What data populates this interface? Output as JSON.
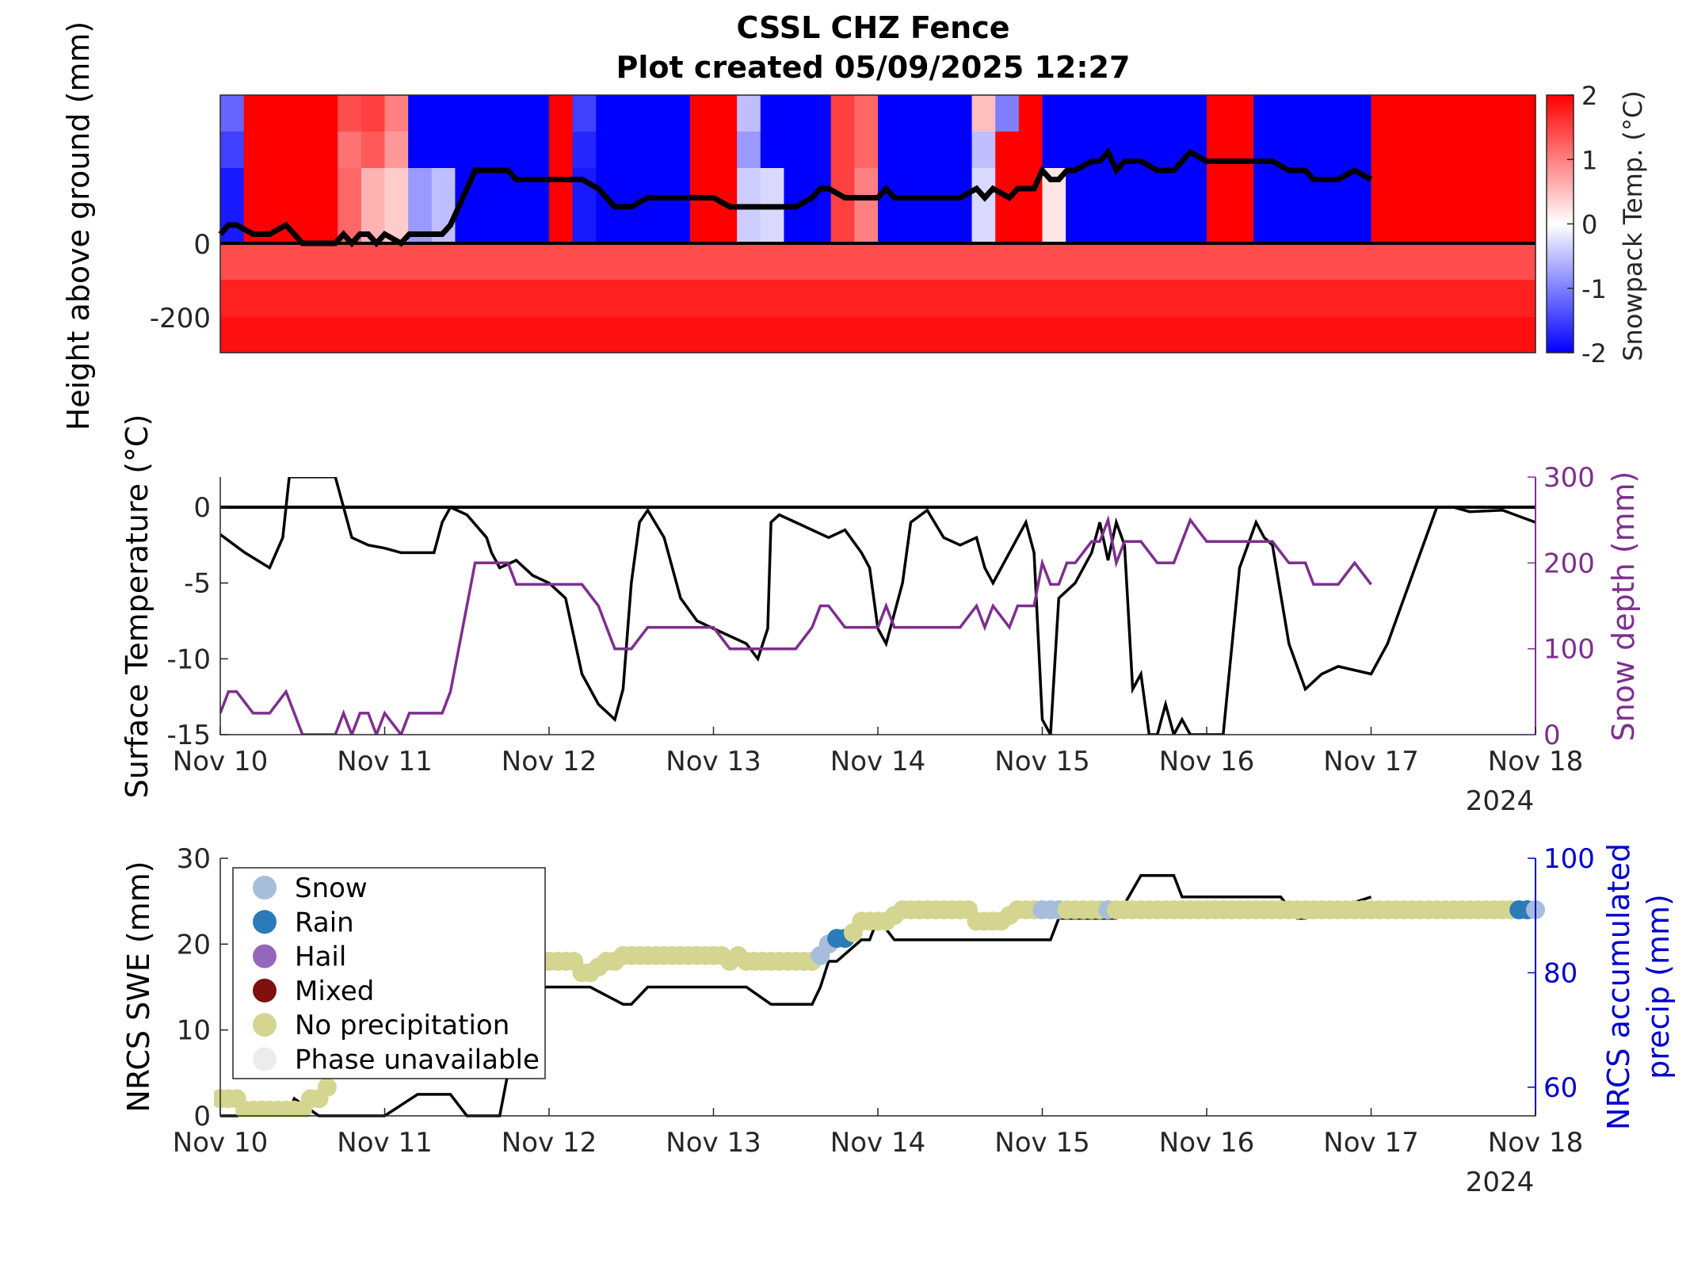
{
  "title": "CSSL CHZ Fence",
  "subtitle": "Plot created 05/09/2025 12:27",
  "colors": {
    "warm": "#ff0000",
    "cold": "#0000ff",
    "snow_depth_line": "#7e2f8e",
    "precip_axis": "#0000cc",
    "snow": "#a6bddb",
    "rain": "#2b7bb9",
    "hail": "#9467bd",
    "mixed": "#7f1010",
    "no_precip": "#d4d591",
    "phase_unavailable": "#ececec"
  },
  "chart_data": [
    {
      "type": "heatmap",
      "ylabel": "Height above ground (mm)",
      "yticks": [
        0,
        -200
      ],
      "ylim": [
        -300,
        400
      ],
      "colorbar": {
        "label": "Snowpack Temp. (°C)",
        "ticks": [
          2,
          1,
          0,
          -1,
          -2
        ],
        "range": [
          -2,
          2
        ]
      },
      "levels_above_ground_mm": [
        300,
        200,
        100
      ],
      "snowpack_temp_C": [
        [
          -1.2,
          2,
          2,
          2,
          2,
          1.4,
          1.5,
          1,
          -2,
          -2,
          -2,
          -2,
          -2,
          -2,
          2,
          -1.5,
          -2,
          -2,
          -2,
          -2,
          2,
          2,
          -0.5,
          -2,
          -2,
          -2,
          1.5,
          1.2,
          -2,
          -2,
          -2,
          -2,
          0.5,
          -1,
          2,
          -2,
          -2,
          -2,
          -2,
          -2,
          -2,
          -2,
          2,
          2,
          -2,
          -2,
          -2,
          -2,
          -2,
          2,
          2,
          2,
          2,
          2,
          2,
          2
        ],
        [
          -1.5,
          2,
          2,
          2,
          2,
          1.1,
          1.3,
          0.8,
          -2,
          -2,
          -2,
          -2,
          -2,
          -2,
          2,
          -1.7,
          -2,
          -2,
          -2,
          -2,
          2,
          2,
          -0.8,
          -2,
          -2,
          -2,
          1.5,
          1.2,
          -2,
          -2,
          -2,
          -2,
          -0.5,
          2,
          2,
          -2,
          -2,
          -2,
          -2,
          -2,
          -2,
          -2,
          2,
          2,
          -2,
          -2,
          -2,
          -2,
          -2,
          2,
          2,
          2,
          2,
          2,
          2,
          2
        ],
        [
          -1.8,
          2,
          2,
          2,
          2,
          1.2,
          0.6,
          0.4,
          -0.8,
          -0.5,
          -2,
          -2,
          -2,
          -2,
          2,
          -1.8,
          -2,
          -2,
          -2,
          -2,
          2,
          2,
          -0.4,
          -0.3,
          -2,
          -2,
          1.5,
          1,
          -2,
          -2,
          -2,
          -2,
          -0.3,
          2,
          2,
          0.2,
          -2,
          -2,
          -2,
          -2,
          -2,
          -2,
          2,
          2,
          -2,
          -2,
          -2,
          -2,
          -2,
          2,
          2,
          2,
          2,
          2,
          2,
          2
        ]
      ],
      "snow_depth_overlay_color": "#000000"
    },
    {
      "type": "line",
      "ylabel": "Surface Temperature (°C)",
      "y2label": "Snow depth (mm)",
      "ylim": [
        -15,
        2
      ],
      "yticks": [
        0,
        -5,
        -10,
        -15
      ],
      "y2lim": [
        0,
        300
      ],
      "y2ticks": [
        0,
        100,
        200,
        300
      ],
      "xticks": [
        "Nov 10",
        "Nov 11",
        "Nov 12",
        "Nov 13",
        "Nov 14",
        "Nov 15",
        "Nov 16",
        "Nov 17",
        "Nov 18"
      ],
      "xlim_days": [
        10,
        18
      ],
      "year_label": "2024",
      "series": [
        {
          "kind": "surface_temp",
          "x": [
            10,
            10.15,
            10.3,
            10.38,
            10.42,
            10.45,
            10.6,
            10.7,
            10.8,
            10.9,
            11.0,
            11.1,
            11.3,
            11.35,
            11.4,
            11.5,
            11.62,
            11.65,
            11.7,
            11.8,
            11.9,
            12.0,
            12.1,
            12.2,
            12.3,
            12.4,
            12.45,
            12.5,
            12.55,
            12.6,
            12.7,
            12.8,
            12.9,
            13.0,
            13.1,
            13.2,
            13.27,
            13.33,
            13.35,
            13.4,
            13.5,
            13.7,
            13.8,
            13.9,
            13.95,
            14.0,
            14.05,
            14.1,
            14.15,
            14.2,
            14.3,
            14.4,
            14.5,
            14.6,
            14.65,
            14.7,
            14.8,
            14.9,
            14.95,
            15.0,
            15.05,
            15.1,
            15.2,
            15.3,
            15.35,
            15.4,
            15.45,
            15.5,
            15.55,
            15.6,
            15.65,
            15.7,
            15.75,
            15.8,
            15.85,
            15.9,
            16.0,
            16.1,
            16.2,
            16.3,
            16.35,
            16.4,
            16.5,
            16.6,
            16.7,
            16.8,
            17.0,
            17.1,
            17.2,
            17.3,
            17.4,
            17.5,
            17.6,
            17.8,
            18.0
          ],
          "y": [
            -1.8,
            -3,
            -4,
            -2,
            2,
            2,
            2,
            2,
            -2,
            -2.5,
            -2.7,
            -3,
            -3,
            -1,
            0,
            -0.5,
            -2,
            -3,
            -4,
            -3.5,
            -4.5,
            -5,
            -6,
            -11,
            -13,
            -14,
            -12,
            -5,
            -1,
            -0.2,
            -2,
            -6,
            -7.5,
            -8,
            -8.5,
            -9,
            -10,
            -8,
            -1,
            -0.5,
            -1,
            -2,
            -1.5,
            -3,
            -4,
            -8,
            -9,
            -7,
            -5,
            -1,
            -0.2,
            -2,
            -2.5,
            -2,
            -4,
            -5,
            -3,
            -1,
            -3,
            -14,
            -15,
            -6,
            -5,
            -3,
            -1,
            -3.5,
            -1,
            -2.5,
            -12,
            -11,
            -15,
            -15,
            -13,
            -15,
            -14,
            -15,
            -15,
            -15,
            -4,
            -1,
            -2,
            -2.5,
            -9,
            -12,
            -11,
            -10.5,
            -11,
            -9,
            -6,
            -3,
            0,
            0,
            -0.3,
            -0.2,
            -1
          ]
        },
        {
          "kind": "snow_depth_mm",
          "x": [
            10,
            10.05,
            10.1,
            10.2,
            10.25,
            10.3,
            10.4,
            10.45,
            10.5,
            10.6,
            10.7,
            10.75,
            10.8,
            10.85,
            10.9,
            10.95,
            11.0,
            11.1,
            11.15,
            11.2,
            11.25,
            11.3,
            11.35,
            11.4,
            11.5,
            11.55,
            11.6,
            11.65,
            11.7,
            11.75,
            11.8,
            11.9,
            11.95,
            12.0,
            12.1,
            12.2,
            12.3,
            12.35,
            12.4,
            12.5,
            12.6,
            12.7,
            12.8,
            12.9,
            13.0,
            13.1,
            13.15,
            13.2,
            13.3,
            13.4,
            13.5,
            13.6,
            13.65,
            13.7,
            13.8,
            13.9,
            14.0,
            14.05,
            14.1,
            14.15,
            14.2,
            14.3,
            14.4,
            14.5,
            14.6,
            14.65,
            14.7,
            14.8,
            14.85,
            14.9,
            14.95,
            15.0,
            15.05,
            15.1,
            15.15,
            15.2,
            15.3,
            15.35,
            15.4,
            15.45,
            15.5,
            15.55,
            15.6,
            15.7,
            15.75,
            15.8,
            15.9,
            16.0,
            16.05,
            16.1,
            16.2,
            16.3,
            16.4,
            16.5,
            16.6,
            16.65,
            16.7,
            16.8,
            16.9,
            17.0
          ],
          "y": [
            25,
            50,
            50,
            25,
            25,
            25,
            50,
            25,
            0,
            0,
            0,
            25,
            0,
            25,
            25,
            0,
            25,
            0,
            25,
            25,
            25,
            25,
            25,
            50,
            150,
            200,
            200,
            200,
            200,
            200,
            175,
            175,
            175,
            175,
            175,
            175,
            150,
            125,
            100,
            100,
            125,
            125,
            125,
            125,
            125,
            100,
            100,
            100,
            100,
            100,
            100,
            125,
            150,
            150,
            125,
            125,
            125,
            150,
            125,
            125,
            125,
            125,
            125,
            125,
            150,
            125,
            150,
            125,
            150,
            150,
            150,
            200,
            175,
            175,
            200,
            200,
            225,
            225,
            250,
            200,
            225,
            225,
            225,
            200,
            200,
            200,
            250,
            225,
            225,
            225,
            225,
            225,
            225,
            200,
            200,
            175,
            175,
            175,
            200,
            175
          ]
        }
      ]
    },
    {
      "type": "scatter",
      "ylabel": "NRCS SWE (mm)",
      "y2label": "NRCS accumulated precip (mm)",
      "ylim": [
        0,
        30
      ],
      "yticks": [
        0,
        10,
        20,
        30
      ],
      "y2lim": [
        55,
        100
      ],
      "y2ticks": [
        60,
        80,
        100
      ],
      "xticks": [
        "Nov 10",
        "Nov 11",
        "Nov 12",
        "Nov 13",
        "Nov 14",
        "Nov 15",
        "Nov 16",
        "Nov 17",
        "Nov 18"
      ],
      "year_label": "2024",
      "legend": {
        "placement": "top-left",
        "entries": [
          "Snow",
          "Rain",
          "Hail",
          "Mixed",
          "No precipitation",
          "Phase unavailable"
        ]
      },
      "series": [
        {
          "kind": "swe_mm",
          "x": [
            10,
            10.35,
            10.37,
            10.4,
            10.43,
            10.45,
            10.6,
            10.62,
            10.65,
            10.7,
            10.9,
            11.0,
            11.2,
            11.25,
            11.4,
            11.5,
            11.6,
            11.7,
            11.85,
            12.1,
            12.2,
            12.25,
            12.45,
            12.5,
            12.6,
            12.8,
            13.0,
            13.05,
            13.2,
            13.35,
            13.6,
            13.65,
            13.7,
            13.75,
            13.9,
            13.95,
            14.0,
            14.1,
            14.5,
            15.0,
            15.05,
            15.1,
            15.15,
            15.3,
            15.4,
            15.45,
            15.6,
            15.8,
            15.85,
            16.0,
            16.4,
            16.45,
            16.55,
            16.6,
            17.0
          ],
          "y": [
            0,
            0,
            1,
            1,
            1,
            2,
            0,
            0,
            0,
            0,
            0,
            0,
            2.5,
            2.5,
            2.5,
            0,
            0,
            0,
            15,
            15,
            15,
            15,
            13,
            13,
            15,
            15,
            15,
            15,
            15,
            13,
            13,
            15,
            18,
            18,
            20.5,
            20.5,
            23,
            20.5,
            20.5,
            20.5,
            20.5,
            23,
            23,
            23,
            23,
            23,
            28,
            28,
            25.5,
            25.5,
            25.5,
            25.5,
            23,
            23,
            25.5
          ]
        },
        {
          "kind": "accumulated_precip_mm",
          "phases": [
            "no_precip",
            "snow",
            "rain",
            "no_precip",
            "snow",
            "rain"
          ],
          "x": [
            10.0,
            10.05,
            10.1,
            10.15,
            10.2,
            10.25,
            10.3,
            10.35,
            10.4,
            10.45,
            10.5,
            10.55,
            10.6,
            10.65,
            11.85,
            11.9,
            11.95,
            12.0,
            12.05,
            12.1,
            12.15,
            12.2,
            12.25,
            12.3,
            12.35,
            12.4,
            12.45,
            12.5,
            12.55,
            12.6,
            12.65,
            12.7,
            12.75,
            12.8,
            12.85,
            12.9,
            12.95,
            13.0,
            13.05,
            13.1,
            13.15,
            13.2,
            13.25,
            13.3,
            13.35,
            13.4,
            13.45,
            13.5,
            13.55,
            13.6,
            13.65,
            13.7,
            13.75,
            13.8,
            13.85,
            13.9,
            13.95,
            14.0,
            14.05,
            14.1,
            14.15,
            14.2,
            14.25,
            14.3,
            14.35,
            14.4,
            14.45,
            14.5,
            14.55,
            14.6,
            14.65,
            14.7,
            14.75,
            14.8,
            14.85,
            14.9,
            14.95,
            15.0,
            15.05,
            15.1,
            15.15,
            15.2,
            15.25,
            15.3,
            15.35,
            15.4,
            15.45,
            15.5,
            15.55,
            15.6,
            15.65,
            15.7,
            15.75,
            15.8,
            15.85,
            15.9,
            15.95,
            16.0,
            16.05,
            16.1,
            16.15,
            16.2,
            16.25,
            16.3,
            16.35,
            16.4,
            16.45,
            16.5,
            16.55,
            16.6,
            16.65,
            16.7,
            16.75,
            16.8,
            16.85,
            16.9,
            16.95,
            17.0,
            17.05,
            17.1,
            17.15,
            17.2,
            17.25,
            17.3,
            17.35,
            17.4,
            17.45,
            17.5,
            17.55,
            17.6,
            17.65,
            17.7,
            17.75,
            17.8,
            17.85,
            17.9,
            17.95,
            18.0
          ],
          "y": [
            58,
            58,
            58,
            56,
            56,
            56,
            56,
            56,
            56,
            56,
            56,
            58,
            58,
            60,
            82,
            82,
            82,
            82,
            82,
            82,
            82,
            80,
            80,
            81,
            82,
            82,
            83,
            83,
            83,
            83,
            83,
            83,
            83,
            83,
            83,
            83,
            83,
            83,
            83,
            82,
            83,
            82,
            82,
            82,
            82,
            82,
            82,
            82,
            82,
            82,
            83,
            85,
            86,
            86,
            87,
            89,
            89,
            89,
            89,
            90,
            91,
            91,
            91,
            91,
            91,
            91,
            91,
            91,
            91,
            89,
            89,
            89,
            89,
            90,
            91,
            91,
            91,
            91,
            91,
            91,
            91,
            91,
            91,
            91,
            91,
            91,
            91,
            91,
            91,
            91,
            91,
            91,
            91,
            91,
            91,
            91,
            91,
            91,
            91,
            91,
            91,
            91,
            91,
            91,
            91,
            91,
            91,
            91,
            91,
            91,
            91,
            91,
            91,
            91,
            91,
            91,
            91,
            91,
            91,
            91,
            91,
            91,
            91,
            91,
            91,
            91,
            91,
            91,
            91,
            91,
            91,
            91,
            91,
            91,
            91,
            91,
            91,
            91
          ]
        }
      ]
    }
  ]
}
